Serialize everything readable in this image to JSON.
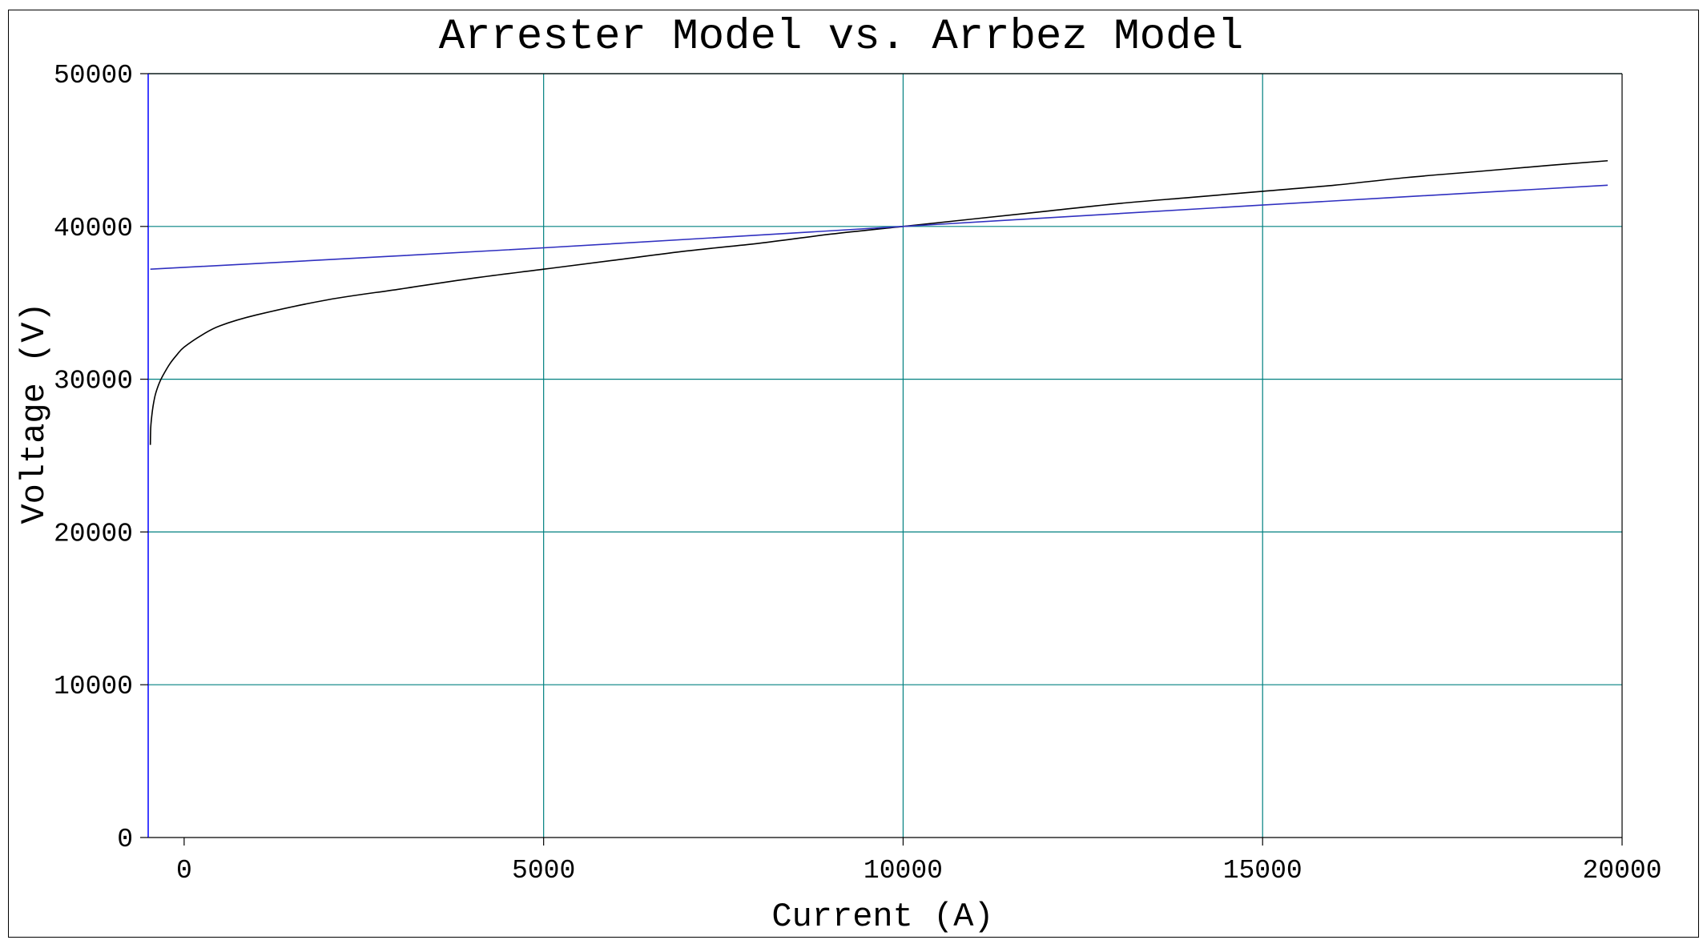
{
  "chart_data": {
    "type": "line",
    "title": "Arrester Model vs. Arrbez Model",
    "xlabel": "Current (A)",
    "ylabel": "Voltage (V)",
    "xlim": [
      -500,
      20000
    ],
    "ylim": [
      0,
      50000
    ],
    "x_ticks": [
      0,
      5000,
      10000,
      15000,
      20000
    ],
    "x_tick_labels": [
      "0",
      "5000",
      "10000",
      "15000",
      "20000"
    ],
    "y_ticks": [
      0,
      10000,
      20000,
      30000,
      40000,
      50000
    ],
    "y_tick_labels": [
      "0",
      "10000",
      "20000",
      "30000",
      "40000",
      "50000"
    ],
    "grid": true,
    "colors": {
      "grid": "#008080",
      "axes": "#0000ff",
      "frame": "#000000"
    },
    "series": [
      {
        "color": "#000000",
        "x": [
          -470,
          -465,
          -450,
          -430,
          -400,
          -350,
          -300,
          -200,
          -100,
          0,
          250,
          500,
          1000,
          2000,
          3000,
          4000,
          5000,
          6000,
          7000,
          8000,
          9000,
          10000,
          11000,
          12000,
          13000,
          14000,
          15000,
          16000,
          17000,
          18000,
          19000,
          19800
        ],
        "y": [
          25700,
          26800,
          27600,
          28300,
          29000,
          29700,
          30200,
          31000,
          31600,
          32100,
          32900,
          33500,
          34200,
          35200,
          35900,
          36600,
          37200,
          37800,
          38400,
          38900,
          39500,
          40000,
          40500,
          41000,
          41500,
          41900,
          42300,
          42700,
          43200,
          43600,
          44000,
          44300
        ]
      },
      {
        "color": "#3030c0",
        "x": [
          -470,
          5000,
          10000,
          15000,
          19800
        ],
        "y": [
          37200,
          38600,
          40000,
          41400,
          42700
        ]
      }
    ]
  }
}
